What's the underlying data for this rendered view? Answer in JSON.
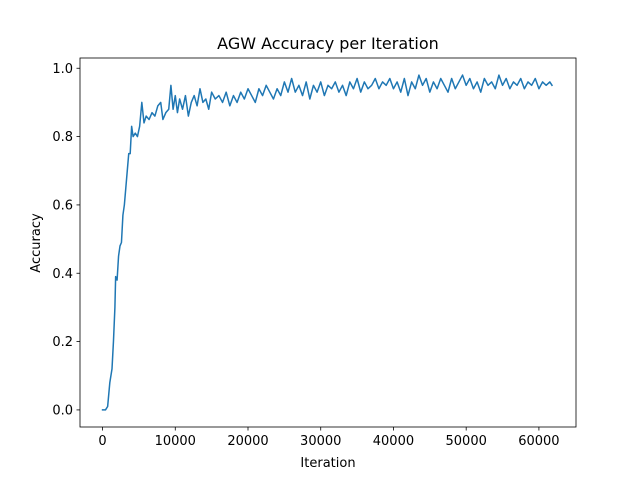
{
  "chart_data": {
    "type": "line",
    "title": "AGW Accuracy per Iteration",
    "xlabel": "Iteration",
    "ylabel": "Accuracy",
    "xlim": [
      -3100,
      65100
    ],
    "ylim": [
      -0.05,
      1.03
    ],
    "xticks": [
      0,
      10000,
      20000,
      30000,
      40000,
      50000,
      60000
    ],
    "xtick_labels": [
      "0",
      "10000",
      "20000",
      "30000",
      "40000",
      "50000",
      "60000"
    ],
    "yticks": [
      0.0,
      0.2,
      0.4,
      0.6,
      0.8,
      1.0
    ],
    "ytick_labels": [
      "0.0",
      "0.2",
      "0.4",
      "0.6",
      "0.8",
      "1.0"
    ],
    "grid": false,
    "legend": "none",
    "series": [
      {
        "color": "#1f77b4",
        "points": [
          [
            0,
            0.0
          ],
          [
            400,
            0.0
          ],
          [
            700,
            0.01
          ],
          [
            1000,
            0.08
          ],
          [
            1300,
            0.12
          ],
          [
            1500,
            0.2
          ],
          [
            1700,
            0.3
          ],
          [
            1800,
            0.39
          ],
          [
            2000,
            0.38
          ],
          [
            2200,
            0.45
          ],
          [
            2400,
            0.48
          ],
          [
            2600,
            0.49
          ],
          [
            2800,
            0.57
          ],
          [
            3000,
            0.6
          ],
          [
            3200,
            0.65
          ],
          [
            3400,
            0.7
          ],
          [
            3600,
            0.75
          ],
          [
            3800,
            0.75
          ],
          [
            4000,
            0.83
          ],
          [
            4200,
            0.8
          ],
          [
            4500,
            0.81
          ],
          [
            4800,
            0.8
          ],
          [
            5100,
            0.83
          ],
          [
            5400,
            0.9
          ],
          [
            5700,
            0.84
          ],
          [
            6000,
            0.86
          ],
          [
            6400,
            0.85
          ],
          [
            6800,
            0.87
          ],
          [
            7200,
            0.86
          ],
          [
            7600,
            0.89
          ],
          [
            8000,
            0.9
          ],
          [
            8300,
            0.85
          ],
          [
            8700,
            0.87
          ],
          [
            9100,
            0.88
          ],
          [
            9400,
            0.95
          ],
          [
            9700,
            0.88
          ],
          [
            10000,
            0.92
          ],
          [
            10300,
            0.87
          ],
          [
            10600,
            0.91
          ],
          [
            11000,
            0.88
          ],
          [
            11400,
            0.92
          ],
          [
            11800,
            0.86
          ],
          [
            12200,
            0.9
          ],
          [
            12600,
            0.92
          ],
          [
            13000,
            0.89
          ],
          [
            13400,
            0.94
          ],
          [
            13800,
            0.9
          ],
          [
            14200,
            0.91
          ],
          [
            14600,
            0.88
          ],
          [
            15000,
            0.93
          ],
          [
            15500,
            0.91
          ],
          [
            16000,
            0.92
          ],
          [
            16500,
            0.9
          ],
          [
            17000,
            0.93
          ],
          [
            17500,
            0.89
          ],
          [
            18000,
            0.92
          ],
          [
            18500,
            0.9
          ],
          [
            19000,
            0.93
          ],
          [
            19500,
            0.91
          ],
          [
            20000,
            0.94
          ],
          [
            20500,
            0.92
          ],
          [
            21000,
            0.9
          ],
          [
            21500,
            0.94
          ],
          [
            22000,
            0.92
          ],
          [
            22500,
            0.95
          ],
          [
            23000,
            0.93
          ],
          [
            23500,
            0.91
          ],
          [
            24000,
            0.94
          ],
          [
            24500,
            0.92
          ],
          [
            25000,
            0.96
          ],
          [
            25500,
            0.93
          ],
          [
            26000,
            0.97
          ],
          [
            26500,
            0.93
          ],
          [
            27000,
            0.95
          ],
          [
            27500,
            0.92
          ],
          [
            28000,
            0.96
          ],
          [
            28500,
            0.91
          ],
          [
            29000,
            0.95
          ],
          [
            29500,
            0.93
          ],
          [
            30000,
            0.96
          ],
          [
            30500,
            0.92
          ],
          [
            31000,
            0.95
          ],
          [
            31500,
            0.94
          ],
          [
            32000,
            0.96
          ],
          [
            32500,
            0.93
          ],
          [
            33000,
            0.95
          ],
          [
            33500,
            0.92
          ],
          [
            34000,
            0.96
          ],
          [
            34500,
            0.94
          ],
          [
            35000,
            0.97
          ],
          [
            35500,
            0.93
          ],
          [
            36000,
            0.96
          ],
          [
            36500,
            0.94
          ],
          [
            37000,
            0.95
          ],
          [
            37500,
            0.97
          ],
          [
            38000,
            0.94
          ],
          [
            38500,
            0.96
          ],
          [
            39000,
            0.95
          ],
          [
            39500,
            0.97
          ],
          [
            40000,
            0.94
          ],
          [
            40500,
            0.96
          ],
          [
            41000,
            0.93
          ],
          [
            41500,
            0.97
          ],
          [
            42000,
            0.92
          ],
          [
            42500,
            0.96
          ],
          [
            43000,
            0.94
          ],
          [
            43500,
            0.98
          ],
          [
            44000,
            0.95
          ],
          [
            44500,
            0.97
          ],
          [
            45000,
            0.93
          ],
          [
            45500,
            0.96
          ],
          [
            46000,
            0.94
          ],
          [
            46500,
            0.97
          ],
          [
            47000,
            0.95
          ],
          [
            47500,
            0.93
          ],
          [
            48000,
            0.97
          ],
          [
            48500,
            0.94
          ],
          [
            49000,
            0.96
          ],
          [
            49500,
            0.98
          ],
          [
            50000,
            0.95
          ],
          [
            50500,
            0.97
          ],
          [
            51000,
            0.94
          ],
          [
            51500,
            0.96
          ],
          [
            52000,
            0.93
          ],
          [
            52500,
            0.97
          ],
          [
            53000,
            0.95
          ],
          [
            53500,
            0.96
          ],
          [
            54000,
            0.94
          ],
          [
            54500,
            0.98
          ],
          [
            55000,
            0.95
          ],
          [
            55500,
            0.97
          ],
          [
            56000,
            0.94
          ],
          [
            56500,
            0.96
          ],
          [
            57000,
            0.95
          ],
          [
            57500,
            0.97
          ],
          [
            58000,
            0.94
          ],
          [
            58500,
            0.96
          ],
          [
            59000,
            0.95
          ],
          [
            59500,
            0.97
          ],
          [
            60000,
            0.94
          ],
          [
            60500,
            0.96
          ],
          [
            61000,
            0.95
          ],
          [
            61500,
            0.96
          ],
          [
            61800,
            0.95
          ]
        ]
      }
    ]
  }
}
